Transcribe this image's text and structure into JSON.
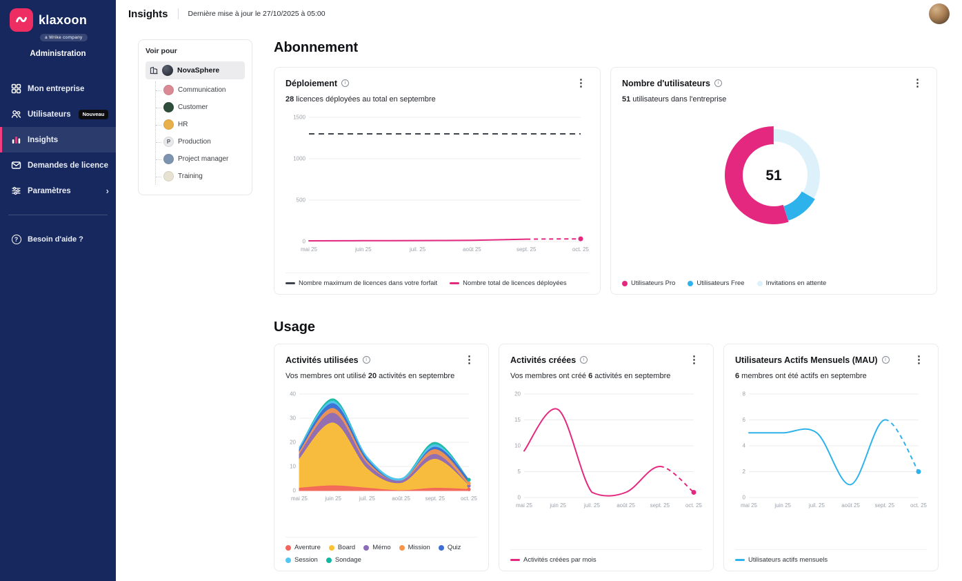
{
  "colors": {
    "sidebar_bg": "#17285e",
    "accent_pink": "#e5287f",
    "accent_cyan": "#2eb2ec",
    "logo_pink": "#ee2d62",
    "max_line": "#3c434d"
  },
  "sidebar": {
    "logo_text": "klaxoon",
    "logo_sub": "a Wrike company",
    "section_label": "Administration",
    "items": [
      {
        "label": "Mon entreprise"
      },
      {
        "label": "Utilisateurs",
        "badge": "Nouveau"
      },
      {
        "label": "Insights"
      },
      {
        "label": "Demandes de licence"
      },
      {
        "label": "Paramètres"
      }
    ],
    "help_label": "Besoin d'aide ?"
  },
  "header": {
    "title": "Insights",
    "last_update": "Dernière mise à jour le 27/10/2025 à 05:00"
  },
  "team_panel": {
    "title": "Voir pour",
    "root": "NovaSphere",
    "children": [
      {
        "label": "Communication",
        "color": "#d98a94"
      },
      {
        "label": "Customer",
        "color": "#2e4d3a"
      },
      {
        "label": "HR",
        "color": "#e8b04a"
      },
      {
        "label": "Production",
        "color": "#e9e9ec",
        "initial": "P"
      },
      {
        "label": "Project manager",
        "color": "#7d94b0"
      },
      {
        "label": "Training",
        "color": "#e8e2d2"
      }
    ]
  },
  "sections": {
    "subscription": "Abonnement",
    "usage": "Usage"
  },
  "cards": {
    "deployment": {
      "title": "Déploiement",
      "sub_pre": "",
      "sub_value": "28",
      "sub_post": " licences déployées au total en septembre"
    },
    "users": {
      "title": "Nombre d'utilisateurs",
      "sub_pre": "",
      "sub_value": "51",
      "sub_post": " utilisateurs dans l'entreprise"
    },
    "activities_used": {
      "title": "Activités utilisées",
      "sub_pre": "Vos membres ont utilisé ",
      "sub_value": "20",
      "sub_post": " activités en septembre"
    },
    "activities_created": {
      "title": "Activités créées",
      "sub_pre": "Vos membres ont créé ",
      "sub_value": "6",
      "sub_post": " activités en septembre"
    },
    "mau": {
      "title": "Utilisateurs Actifs Mensuels (MAU)",
      "sub_pre": "",
      "sub_value": "6",
      "sub_post": " membres ont été actifs en septembre"
    }
  },
  "chart_data": [
    {
      "id": "deployment",
      "type": "line",
      "title": "Déploiement",
      "x": [
        "mai 25",
        "juin 25",
        "juil. 25",
        "août 25",
        "sept. 25",
        "oct. 25"
      ],
      "ylim": [
        0,
        1500
      ],
      "yticks": [
        0,
        500,
        1000,
        1500
      ],
      "padL": 34,
      "legend_position": "bottom",
      "series": [
        {
          "name": "Nombre maximum de licences dans votre forfait",
          "color": "#3c434d",
          "dash": "all",
          "values": [
            1300,
            1300,
            1300,
            1300,
            1300,
            1300
          ]
        },
        {
          "name": "Nombre total de licences déployées",
          "color": "#e5287f",
          "dash": "last",
          "end_dot": true,
          "values": [
            8,
            10,
            12,
            15,
            28,
            32
          ]
        }
      ]
    },
    {
      "id": "users",
      "type": "donut",
      "title": "Nombre d'utilisateurs",
      "center_value": "51",
      "slices": [
        {
          "name": "Utilisateurs Pro",
          "value": 28,
          "color": "#e5287f",
          "ring": 26
        },
        {
          "name": "Utilisateurs Free",
          "value": 6,
          "color": "#2eb2ec",
          "ring": 22
        },
        {
          "name": "Invitations en attente",
          "value": 17,
          "color": "#ddf1fb",
          "ring": 18
        }
      ]
    },
    {
      "id": "activities_used",
      "type": "stacked-area",
      "title": "Activités utilisées",
      "x": [
        "mai 25",
        "juin 25",
        "juil. 25",
        "août 25",
        "sept. 25",
        "oct. 25"
      ],
      "ylim": [
        0,
        40
      ],
      "yticks": [
        0,
        10,
        20,
        30,
        40
      ],
      "padL": 20,
      "series": [
        {
          "name": "Aventure",
          "color": "#f2655c",
          "values": [
            1,
            2,
            1,
            0,
            1,
            0.5
          ]
        },
        {
          "name": "Board",
          "color": "#ffc233",
          "values": [
            12,
            26,
            8,
            3,
            12,
            1.5
          ]
        },
        {
          "name": "Mémo",
          "color": "#8b6cba",
          "values": [
            2,
            4,
            2,
            1,
            2,
            0
          ]
        },
        {
          "name": "Mission",
          "color": "#f9944b",
          "values": [
            1,
            2,
            1,
            0,
            2,
            1
          ]
        },
        {
          "name": "Quiz",
          "color": "#3d6ed3",
          "values": [
            1,
            2,
            1,
            0,
            1,
            1.5
          ]
        },
        {
          "name": "Session",
          "color": "#53c6f3",
          "values": [
            1,
            1,
            1,
            1,
            1,
            0
          ]
        },
        {
          "name": "Sondage",
          "color": "#13b7a2",
          "values": [
            0,
            1,
            0,
            0,
            1,
            0
          ]
        }
      ]
    },
    {
      "id": "activities_created",
      "type": "line",
      "title": "Activités créées",
      "x": [
        "mai 25",
        "juin 25",
        "juil. 25",
        "août 25",
        "sept. 25",
        "oct. 25"
      ],
      "ylim": [
        0,
        20
      ],
      "yticks": [
        0,
        5,
        10,
        15,
        20
      ],
      "padL": 20,
      "series": [
        {
          "name": "Activités créées par mois",
          "color": "#e5287f",
          "dash": "last",
          "end_dot": true,
          "values": [
            9,
            17,
            1,
            1,
            6,
            1
          ]
        }
      ]
    },
    {
      "id": "mau",
      "type": "line",
      "title": "Utilisateurs Actifs Mensuels (MAU)",
      "x": [
        "mai 25",
        "juin 25",
        "juil. 25",
        "août 25",
        "sept. 25",
        "oct. 25"
      ],
      "ylim": [
        0,
        8
      ],
      "yticks": [
        0,
        2,
        4,
        6,
        8
      ],
      "padL": 20,
      "series": [
        {
          "name": "Utilisateurs actifs mensuels",
          "color": "#2eb2ec",
          "dash": "last",
          "end_dot": true,
          "values": [
            5,
            5,
            5,
            1,
            6,
            2
          ]
        }
      ]
    }
  ]
}
